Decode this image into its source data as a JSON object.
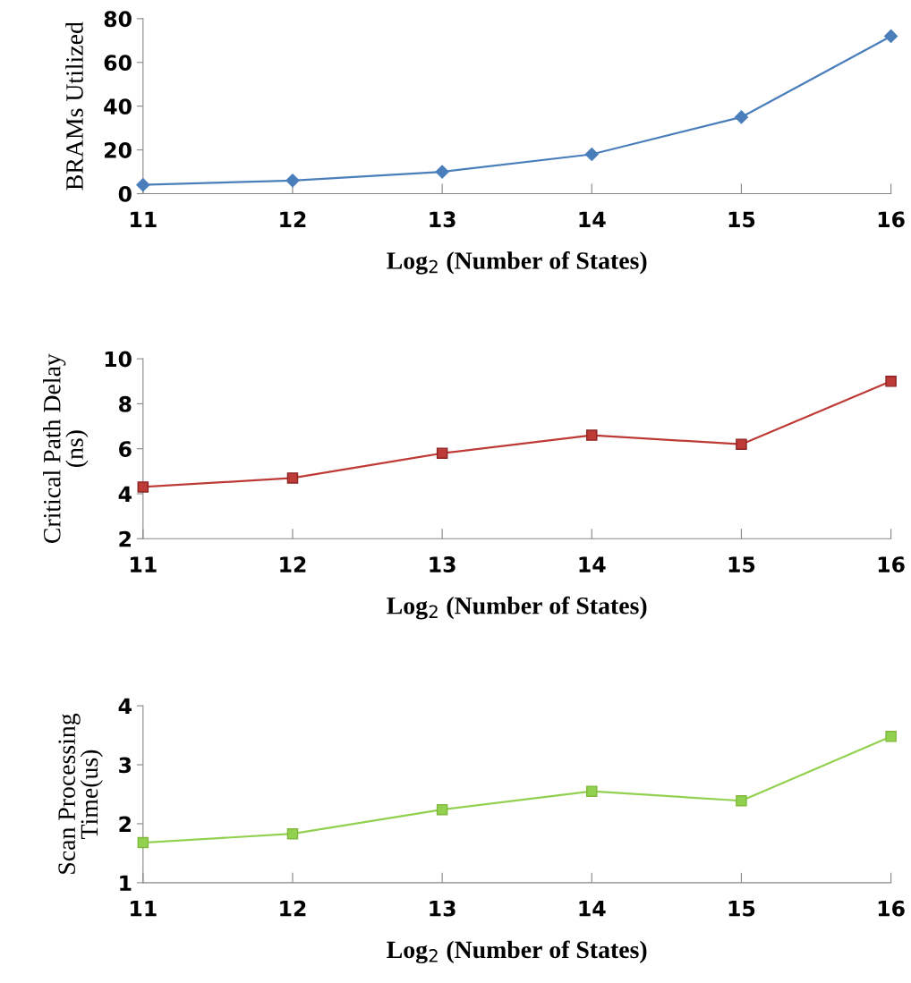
{
  "chart_data": [
    {
      "type": "line",
      "x": [
        11,
        12,
        13,
        14,
        15,
        16
      ],
      "xlabel": "Log$_{2}$ (Number of States)",
      "ylabel": "BRAMs Utilized",
      "xlim": [
        11,
        16
      ],
      "xticks": [
        11,
        12,
        13,
        14,
        15,
        16
      ],
      "ylim": [
        0,
        80
      ],
      "yticks": [
        0,
        20,
        40,
        60,
        80
      ],
      "marker": "diamond",
      "grid": false,
      "series": [
        {
          "color": "#4a7ebb",
          "values": [
            4,
            6,
            10,
            18,
            35,
            72
          ]
        }
      ]
    },
    {
      "type": "line",
      "x": [
        11,
        12,
        13,
        14,
        15,
        16
      ],
      "xlabel": "Log$_{2}$ (Number of States)",
      "ylabel": "Critical Path Delay\n(ns)",
      "xlim": [
        11,
        16
      ],
      "xticks": [
        11,
        12,
        13,
        14,
        15,
        16
      ],
      "ylim": [
        2,
        10
      ],
      "yticks": [
        2,
        4,
        6,
        8,
        10
      ],
      "marker": "square",
      "grid": false,
      "series": [
        {
          "color": "#be3a36",
          "values": [
            4.3,
            4.7,
            5.8,
            6.6,
            6.2,
            9.0
          ]
        }
      ]
    },
    {
      "type": "line",
      "x": [
        11,
        12,
        13,
        14,
        15,
        16
      ],
      "xlabel": "Log$_{2}$ (Number of States)",
      "ylabel": "Scan Processing\nTime(us)",
      "xlim": [
        11,
        16
      ],
      "xticks": [
        11,
        12,
        13,
        14,
        15,
        16
      ],
      "ylim": [
        1,
        4
      ],
      "yticks": [
        1,
        2,
        3,
        4
      ],
      "marker": "square",
      "grid": false,
      "series": [
        {
          "color": "#92d050",
          "values": [
            1.68,
            1.83,
            2.24,
            2.55,
            2.39,
            3.48
          ]
        }
      ]
    }
  ]
}
